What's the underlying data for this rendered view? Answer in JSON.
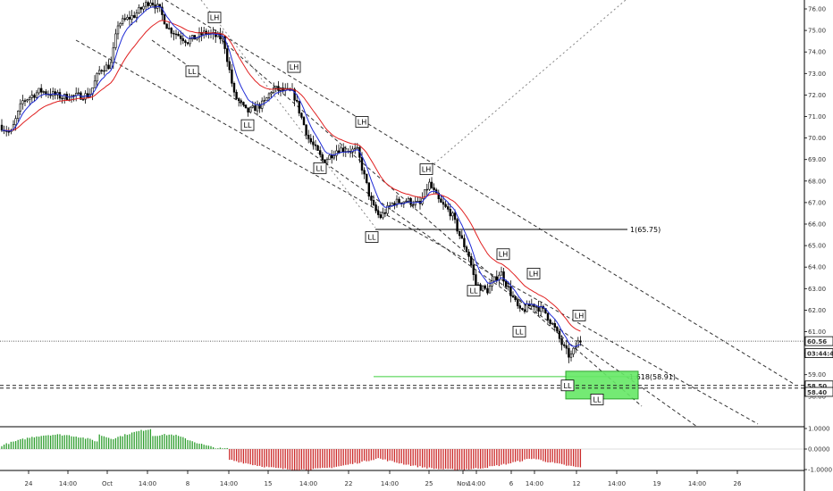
{
  "chart_data": {
    "type": "candlestick",
    "main": {
      "yticks": [
        "76.00",
        "75.00",
        "74.00",
        "73.00",
        "72.00",
        "71.00",
        "70.00",
        "69.00",
        "68.00",
        "67.00",
        "66.00",
        "65.00",
        "64.00",
        "63.00",
        "62.00",
        "61.00",
        "60.00",
        "59.00",
        "58.00"
      ],
      "ylim": [
        57.8,
        76.4
      ],
      "grid": false,
      "price_badges": [
        {
          "label": "60.56",
          "value": 60.56
        },
        {
          "label": "03:44:44",
          "value": 60.0
        },
        {
          "label": "58.50",
          "value": 58.5
        },
        {
          "label": "58.40",
          "value": 58.2
        }
      ],
      "ma_colors": {
        "fast": "#1f2bd6",
        "slow": "#e02020"
      },
      "fib_label": "1(65.75)",
      "fib_value": 65.75,
      "target_label": "1.618(58.91)",
      "target_value": 58.91,
      "tags": [
        {
          "label": "LH",
          "x": 240,
          "v": 75.6
        },
        {
          "label": "LL",
          "x": 215,
          "v": 73.1
        },
        {
          "label": "LH",
          "x": 329,
          "v": 73.3
        },
        {
          "label": "LL",
          "x": 277,
          "v": 70.6
        },
        {
          "label": "LH",
          "x": 405,
          "v": 70.75
        },
        {
          "label": "LL",
          "x": 358,
          "v": 68.6
        },
        {
          "label": "LH",
          "x": 477,
          "v": 68.55
        },
        {
          "label": "LL",
          "x": 416,
          "v": 65.4
        },
        {
          "label": "LH",
          "x": 563,
          "v": 64.6
        },
        {
          "label": "LH",
          "x": 597,
          "v": 63.7
        },
        {
          "label": "LL",
          "x": 530,
          "v": 62.9
        },
        {
          "label": "LL",
          "x": 581,
          "v": 61.0
        },
        {
          "label": "LH",
          "x": 648,
          "v": 61.75
        },
        {
          "label": "LL",
          "x": 635,
          "v": 58.5
        },
        {
          "label": "LL",
          "x": 668,
          "v": 57.85
        }
      ]
    },
    "oscillator": {
      "yticks": [
        "1.0000",
        "0.0000",
        "-1.0000"
      ],
      "ylim": [
        -1.2,
        1.2
      ],
      "positive_color": "#2e9e2e",
      "negative_color": "#cc2a2a"
    },
    "xticks": [
      {
        "label": "24",
        "x": 32
      },
      {
        "label": "14:00",
        "x": 76
      },
      {
        "label": "Oct",
        "x": 120
      },
      {
        "label": "14:00",
        "x": 165
      },
      {
        "label": "8",
        "x": 210
      },
      {
        "label": "14:00",
        "x": 256
      },
      {
        "label": "15",
        "x": 300
      },
      {
        "label": "14:00",
        "x": 345
      },
      {
        "label": "22",
        "x": 390
      },
      {
        "label": "14:00",
        "x": 436
      },
      {
        "label": "25",
        "x": 480
      },
      {
        "label": "Nov",
        "x": 518
      },
      {
        "label": "14:00",
        "x": 533
      },
      {
        "label": "6",
        "x": 572
      },
      {
        "label": "14:00",
        "x": 598
      },
      {
        "label": "12",
        "x": 645
      },
      {
        "label": "14:00",
        "x": 690
      },
      {
        "label": "19",
        "x": 735
      },
      {
        "label": "14:00",
        "x": 780
      },
      {
        "label": "26",
        "x": 825
      }
    ]
  }
}
